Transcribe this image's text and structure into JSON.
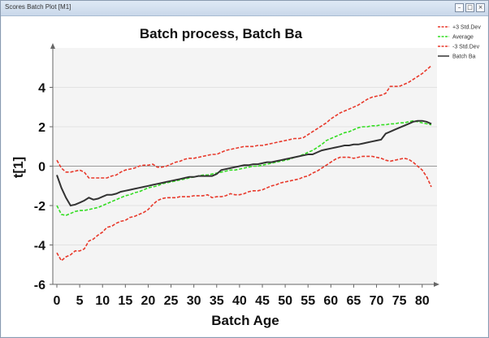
{
  "window": {
    "title": "Scores Batch Plot [M1]"
  },
  "chart_data": {
    "type": "line",
    "title": "Batch process, Batch Ba",
    "xlabel": "Batch Age",
    "ylabel": "t[1]",
    "xlim": [
      0,
      82
    ],
    "ylim": [
      -6,
      6
    ],
    "xticks": [
      0,
      5,
      10,
      15,
      20,
      25,
      30,
      35,
      40,
      45,
      50,
      55,
      60,
      65,
      70,
      75,
      80
    ],
    "yticks": [
      -6,
      -4,
      -2,
      0,
      2,
      4
    ],
    "grid": "horizontal",
    "legend_position": "top-right",
    "series": [
      {
        "name": "+3 Std.Dev",
        "color": "#e8392b",
        "style": "dashed",
        "x": [
          0,
          1,
          2,
          3,
          4,
          5,
          6,
          7,
          8,
          9,
          10,
          11,
          12,
          13,
          14,
          15,
          16,
          17,
          18,
          19,
          20,
          21,
          22,
          23,
          24,
          25,
          26,
          27,
          28,
          29,
          30,
          31,
          32,
          33,
          34,
          35,
          36,
          37,
          38,
          39,
          40,
          41,
          42,
          43,
          44,
          45,
          46,
          47,
          48,
          49,
          50,
          51,
          52,
          53,
          54,
          55,
          56,
          57,
          58,
          59,
          60,
          61,
          62,
          63,
          64,
          65,
          66,
          67,
          68,
          69,
          70,
          71,
          72,
          73,
          74,
          75,
          76,
          77,
          78,
          79,
          80,
          81,
          82
        ],
        "y": [
          0.3,
          -0.1,
          -0.3,
          -0.3,
          -0.25,
          -0.2,
          -0.3,
          -0.6,
          -0.6,
          -0.6,
          -0.6,
          -0.6,
          -0.5,
          -0.45,
          -0.3,
          -0.2,
          -0.15,
          -0.1,
          0.0,
          0.05,
          0.05,
          0.1,
          -0.05,
          -0.05,
          0.0,
          0.1,
          0.2,
          0.25,
          0.35,
          0.4,
          0.4,
          0.45,
          0.5,
          0.55,
          0.6,
          0.6,
          0.7,
          0.8,
          0.85,
          0.9,
          0.95,
          1.0,
          1.0,
          1.0,
          1.05,
          1.05,
          1.1,
          1.15,
          1.2,
          1.25,
          1.3,
          1.35,
          1.4,
          1.4,
          1.45,
          1.6,
          1.75,
          1.9,
          2.05,
          2.2,
          2.4,
          2.55,
          2.7,
          2.8,
          2.9,
          3.0,
          3.1,
          3.25,
          3.4,
          3.5,
          3.55,
          3.6,
          3.7,
          4.05,
          4.05,
          4.05,
          4.15,
          4.25,
          4.4,
          4.55,
          4.7,
          4.9,
          5.1
        ]
      },
      {
        "name": "Average",
        "color": "#33dd22",
        "style": "dashed",
        "x": [
          0,
          1,
          2,
          3,
          4,
          5,
          6,
          7,
          8,
          9,
          10,
          11,
          12,
          13,
          14,
          15,
          16,
          17,
          18,
          19,
          20,
          21,
          22,
          23,
          24,
          25,
          26,
          27,
          28,
          29,
          30,
          31,
          32,
          33,
          34,
          35,
          36,
          37,
          38,
          39,
          40,
          41,
          42,
          43,
          44,
          45,
          46,
          47,
          48,
          49,
          50,
          51,
          52,
          53,
          54,
          55,
          56,
          57,
          58,
          59,
          60,
          61,
          62,
          63,
          64,
          65,
          66,
          67,
          68,
          69,
          70,
          71,
          72,
          73,
          74,
          75,
          76,
          77,
          78,
          79,
          80,
          81,
          82
        ],
        "y": [
          -2.0,
          -2.45,
          -2.5,
          -2.4,
          -2.3,
          -2.25,
          -2.25,
          -2.2,
          -2.15,
          -2.1,
          -2.0,
          -1.9,
          -1.8,
          -1.7,
          -1.6,
          -1.5,
          -1.45,
          -1.35,
          -1.3,
          -1.2,
          -1.1,
          -1.05,
          -1.0,
          -0.9,
          -0.85,
          -0.8,
          -0.75,
          -0.7,
          -0.65,
          -0.6,
          -0.55,
          -0.5,
          -0.45,
          -0.45,
          -0.4,
          -0.35,
          -0.3,
          -0.25,
          -0.2,
          -0.2,
          -0.15,
          -0.1,
          -0.05,
          0.0,
          0.0,
          0.05,
          0.1,
          0.15,
          0.2,
          0.25,
          0.3,
          0.35,
          0.45,
          0.5,
          0.6,
          0.7,
          0.8,
          0.95,
          1.1,
          1.3,
          1.4,
          1.5,
          1.6,
          1.7,
          1.75,
          1.85,
          1.95,
          2.0,
          2.0,
          2.05,
          2.05,
          2.1,
          2.1,
          2.15,
          2.15,
          2.2,
          2.2,
          2.25,
          2.3,
          2.25,
          2.2,
          2.15,
          2.1
        ]
      },
      {
        "name": "-3 Std.Dev",
        "color": "#e8392b",
        "style": "dashed",
        "x": [
          0,
          1,
          2,
          3,
          4,
          5,
          6,
          7,
          8,
          9,
          10,
          11,
          12,
          13,
          14,
          15,
          16,
          17,
          18,
          19,
          20,
          21,
          22,
          23,
          24,
          25,
          26,
          27,
          28,
          29,
          30,
          31,
          32,
          33,
          34,
          35,
          36,
          37,
          38,
          39,
          40,
          41,
          42,
          43,
          44,
          45,
          46,
          47,
          48,
          49,
          50,
          51,
          52,
          53,
          54,
          55,
          56,
          57,
          58,
          59,
          60,
          61,
          62,
          63,
          64,
          65,
          66,
          67,
          68,
          69,
          70,
          71,
          72,
          73,
          74,
          75,
          76,
          77,
          78,
          79,
          80,
          81,
          82
        ],
        "y": [
          -4.4,
          -4.8,
          -4.6,
          -4.5,
          -4.3,
          -4.3,
          -4.2,
          -3.8,
          -3.7,
          -3.5,
          -3.35,
          -3.1,
          -3.05,
          -2.9,
          -2.8,
          -2.75,
          -2.6,
          -2.55,
          -2.45,
          -2.35,
          -2.2,
          -1.95,
          -1.75,
          -1.65,
          -1.6,
          -1.6,
          -1.6,
          -1.55,
          -1.55,
          -1.55,
          -1.5,
          -1.5,
          -1.5,
          -1.45,
          -1.6,
          -1.55,
          -1.55,
          -1.5,
          -1.4,
          -1.45,
          -1.45,
          -1.4,
          -1.3,
          -1.25,
          -1.25,
          -1.2,
          -1.1,
          -1.0,
          -0.95,
          -0.85,
          -0.8,
          -0.75,
          -0.7,
          -0.65,
          -0.55,
          -0.5,
          -0.35,
          -0.25,
          -0.1,
          0.05,
          0.2,
          0.35,
          0.45,
          0.45,
          0.45,
          0.4,
          0.45,
          0.5,
          0.5,
          0.5,
          0.45,
          0.4,
          0.3,
          0.25,
          0.3,
          0.35,
          0.4,
          0.35,
          0.2,
          0.0,
          -0.2,
          -0.55,
          -1.05
        ]
      },
      {
        "name": "Batch Ba",
        "color": "#333333",
        "style": "solid",
        "x": [
          0,
          1,
          2,
          3,
          4,
          5,
          6,
          7,
          8,
          9,
          10,
          11,
          12,
          13,
          14,
          15,
          16,
          17,
          18,
          19,
          20,
          21,
          22,
          23,
          24,
          25,
          26,
          27,
          28,
          29,
          30,
          31,
          32,
          33,
          34,
          35,
          36,
          37,
          38,
          39,
          40,
          41,
          42,
          43,
          44,
          45,
          46,
          47,
          48,
          49,
          50,
          51,
          52,
          53,
          54,
          55,
          56,
          57,
          58,
          59,
          60,
          61,
          62,
          63,
          64,
          65,
          66,
          67,
          68,
          69,
          70,
          71,
          72,
          73,
          74,
          75,
          76,
          77,
          78,
          79,
          80,
          81,
          82
        ],
        "y": [
          -0.45,
          -1.1,
          -1.6,
          -2.0,
          -1.95,
          -1.85,
          -1.75,
          -1.6,
          -1.7,
          -1.65,
          -1.55,
          -1.45,
          -1.45,
          -1.4,
          -1.3,
          -1.25,
          -1.2,
          -1.15,
          -1.1,
          -1.05,
          -1.0,
          -0.95,
          -0.9,
          -0.85,
          -0.8,
          -0.75,
          -0.7,
          -0.65,
          -0.6,
          -0.55,
          -0.55,
          -0.5,
          -0.5,
          -0.5,
          -0.5,
          -0.4,
          -0.2,
          -0.15,
          -0.1,
          -0.05,
          0.0,
          0.05,
          0.05,
          0.1,
          0.1,
          0.15,
          0.2,
          0.2,
          0.25,
          0.3,
          0.35,
          0.4,
          0.45,
          0.5,
          0.55,
          0.6,
          0.6,
          0.7,
          0.8,
          0.85,
          0.9,
          0.95,
          1.0,
          1.05,
          1.05,
          1.1,
          1.1,
          1.15,
          1.2,
          1.25,
          1.3,
          1.35,
          1.65,
          1.75,
          1.85,
          1.95,
          2.05,
          2.15,
          2.25,
          2.3,
          2.3,
          2.25,
          2.15
        ]
      }
    ]
  }
}
